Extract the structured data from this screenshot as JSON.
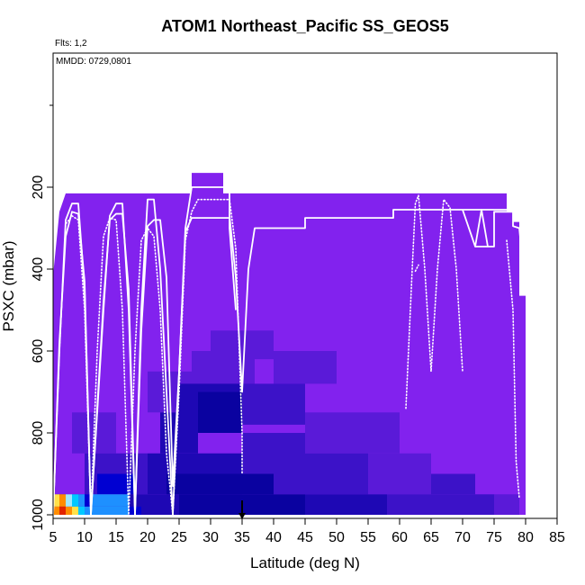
{
  "chart_data": {
    "type": "heatmap",
    "title": "ATOM1 Northeast_Pacific SS_GEOS5",
    "flights_label": "Flts: 1,2",
    "date_label": "MMDD: 0729,0801",
    "xlabel": "Latitude (deg N)",
    "ylabel": "PSXC (mbar)",
    "xlim": [
      5,
      85
    ],
    "ylim": [
      1000,
      0
    ],
    "x_ticks": [
      5,
      10,
      15,
      20,
      25,
      30,
      35,
      40,
      45,
      50,
      55,
      60,
      65,
      70,
      75,
      80,
      85
    ],
    "y_ticks": [
      200,
      400,
      600,
      800,
      1000
    ],
    "marker_latitude": 35,
    "colors": {
      "background_field": "#8222ee",
      "flight_track": "#ffffff",
      "marker": "#000000",
      "scale": [
        "#8222ee",
        "#5a1ad8",
        "#3c12c8",
        "#1e08b4",
        "#0a02a0",
        "#0000d2",
        "#1e90ff",
        "#00c8ff",
        "#9fe8ff",
        "#ffe14a",
        "#ff8c00",
        "#e22400"
      ]
    },
    "field_top_pressure": [
      [
        5,
        415
      ],
      [
        6,
        260
      ],
      [
        7,
        215
      ],
      [
        27,
        215
      ],
      [
        27,
        165
      ],
      [
        32,
        165
      ],
      [
        32,
        215
      ],
      [
        77,
        215
      ],
      [
        77,
        260
      ],
      [
        78,
        260
      ],
      [
        78,
        285
      ],
      [
        79,
        285
      ],
      [
        79,
        465
      ],
      [
        80,
        465
      ],
      [
        80,
        1000
      ]
    ],
    "cells": [
      {
        "x": [
          27,
          37
        ],
        "p": [
          600,
          700
        ],
        "level": 1
      },
      {
        "x": [
          30,
          40
        ],
        "p": [
          550,
          620
        ],
        "level": 1
      },
      {
        "x": [
          40,
          50
        ],
        "p": [
          600,
          680
        ],
        "level": 1
      },
      {
        "x": [
          20,
          27
        ],
        "p": [
          650,
          750
        ],
        "level": 1
      },
      {
        "x": [
          35,
          45
        ],
        "p": [
          680,
          780
        ],
        "level": 2
      },
      {
        "x": [
          25,
          35
        ],
        "p": [
          680,
          760
        ],
        "level": 3
      },
      {
        "x": [
          28,
          35
        ],
        "p": [
          700,
          800
        ],
        "level": 4
      },
      {
        "x": [
          22,
          28
        ],
        "p": [
          750,
          850
        ],
        "level": 3
      },
      {
        "x": [
          8,
          15
        ],
        "p": [
          750,
          850
        ],
        "level": 1
      },
      {
        "x": [
          45,
          60
        ],
        "p": [
          750,
          850
        ],
        "level": 1
      },
      {
        "x": [
          10,
          20
        ],
        "p": [
          850,
          950
        ],
        "level": 2
      },
      {
        "x": [
          20,
          35
        ],
        "p": [
          850,
          950
        ],
        "level": 3
      },
      {
        "x": [
          35,
          45
        ],
        "p": [
          800,
          950
        ],
        "level": 2
      },
      {
        "x": [
          45,
          55
        ],
        "p": [
          850,
          950
        ],
        "level": 2
      },
      {
        "x": [
          55,
          65
        ],
        "p": [
          850,
          950
        ],
        "level": 1
      },
      {
        "x": [
          65,
          72
        ],
        "p": [
          900,
          950
        ],
        "level": 2
      },
      {
        "x": [
          12,
          18
        ],
        "p": [
          900,
          950
        ],
        "level": 5
      },
      {
        "x": [
          23,
          40
        ],
        "p": [
          900,
          950
        ],
        "level": 4
      },
      {
        "x": [
          5,
          10
        ],
        "p": [
          950,
          1000
        ],
        "level": 2
      },
      {
        "x": [
          10,
          16
        ],
        "p": [
          950,
          1000
        ],
        "level": 2
      },
      {
        "x": [
          16,
          25
        ],
        "p": [
          950,
          1000
        ],
        "level": 3
      },
      {
        "x": [
          25,
          45
        ],
        "p": [
          950,
          1000
        ],
        "level": 4
      },
      {
        "x": [
          45,
          58
        ],
        "p": [
          950,
          1000
        ],
        "level": 3
      },
      {
        "x": [
          58,
          75
        ],
        "p": [
          950,
          1000
        ],
        "level": 2
      },
      {
        "x": [
          75,
          79
        ],
        "p": [
          950,
          1000
        ],
        "level": 1
      },
      {
        "x": [
          5,
          6
        ],
        "p": [
          950,
          980
        ],
        "level": 9
      },
      {
        "x": [
          6,
          7
        ],
        "p": [
          950,
          980
        ],
        "level": 10
      },
      {
        "x": [
          7,
          8
        ],
        "p": [
          950,
          980
        ],
        "level": 8
      },
      {
        "x": [
          8,
          9
        ],
        "p": [
          950,
          980
        ],
        "level": 7
      },
      {
        "x": [
          9,
          10
        ],
        "p": [
          950,
          980
        ],
        "level": 6
      },
      {
        "x": [
          10,
          11
        ],
        "p": [
          950,
          980
        ],
        "level": 5
      },
      {
        "x": [
          5,
          6
        ],
        "p": [
          980,
          1000
        ],
        "level": 10
      },
      {
        "x": [
          6,
          7
        ],
        "p": [
          980,
          1000
        ],
        "level": 11
      },
      {
        "x": [
          7,
          8
        ],
        "p": [
          980,
          1000
        ],
        "level": 10
      },
      {
        "x": [
          8,
          9
        ],
        "p": [
          980,
          1000
        ],
        "level": 9
      },
      {
        "x": [
          9,
          10
        ],
        "p": [
          980,
          1000
        ],
        "level": 7
      },
      {
        "x": [
          10,
          12
        ],
        "p": [
          980,
          1000
        ],
        "level": 6
      },
      {
        "x": [
          12,
          17
        ],
        "p": [
          980,
          1000
        ],
        "level": 6
      },
      {
        "x": [
          17,
          19
        ],
        "p": [
          980,
          1000
        ],
        "level": 5
      },
      {
        "x": [
          11,
          17
        ],
        "p": [
          950,
          980
        ],
        "level": 6
      }
    ],
    "series": [
      {
        "style": "solid",
        "points": [
          [
            5,
            1000
          ],
          [
            6,
            600
          ],
          [
            7,
            280
          ],
          [
            8,
            240
          ],
          [
            9,
            240
          ],
          [
            10,
            450
          ],
          [
            11,
            1000
          ],
          [
            13,
            500
          ],
          [
            14,
            270
          ],
          [
            15,
            240
          ],
          [
            16,
            240
          ],
          [
            17,
            500
          ],
          [
            18,
            1000
          ],
          [
            19,
            500
          ],
          [
            20,
            230
          ],
          [
            21,
            230
          ],
          [
            22,
            400
          ],
          [
            23,
            700
          ],
          [
            24,
            1000
          ],
          [
            25,
            650
          ],
          [
            26,
            300
          ],
          [
            27,
            200
          ],
          [
            30,
            200
          ],
          [
            33,
            200
          ],
          [
            33,
            270
          ],
          [
            34,
            420
          ],
          [
            35,
            700
          ],
          [
            36,
            400
          ],
          [
            37,
            300
          ],
          [
            45,
            300
          ],
          [
            45,
            275
          ],
          [
            59,
            275
          ],
          [
            59,
            255
          ],
          [
            77,
            255
          ]
        ]
      },
      {
        "style": "solid",
        "points": [
          [
            5,
            1000
          ],
          [
            6,
            580
          ],
          [
            7,
            320
          ],
          [
            8,
            260
          ],
          [
            9,
            265
          ],
          [
            10,
            430
          ],
          [
            11,
            1000
          ],
          [
            13,
            480
          ],
          [
            14,
            280
          ],
          [
            15,
            265
          ],
          [
            16,
            265
          ],
          [
            17,
            450
          ],
          [
            18,
            1000
          ],
          [
            19,
            550
          ],
          [
            20,
            295
          ],
          [
            21,
            280
          ],
          [
            22,
            280
          ],
          [
            23,
            420
          ],
          [
            24,
            930
          ],
          [
            25,
            650
          ],
          [
            26,
            310
          ],
          [
            27,
            275
          ],
          [
            31,
            275
          ],
          [
            33,
            275
          ],
          [
            33,
            300
          ],
          [
            34,
            500
          ]
        ]
      },
      {
        "style": "solid",
        "points": [
          [
            72,
            345
          ],
          [
            75,
            345
          ],
          [
            75,
            260
          ],
          [
            78,
            260
          ],
          [
            78,
            295
          ],
          [
            79,
            300
          ],
          [
            80,
            460
          ]
        ]
      },
      {
        "style": "solid",
        "points": [
          [
            70,
            255
          ],
          [
            72,
            345
          ],
          [
            73,
            255
          ],
          [
            74,
            345
          ]
        ]
      },
      {
        "style": "dotted",
        "points": [
          [
            5,
            1000
          ],
          [
            6,
            600
          ],
          [
            7,
            290
          ],
          [
            8,
            270
          ],
          [
            9,
            280
          ],
          [
            10,
            500
          ],
          [
            11,
            1000
          ],
          [
            12,
            600
          ],
          [
            13,
            320
          ],
          [
            14,
            275
          ],
          [
            15,
            280
          ],
          [
            16,
            500
          ],
          [
            17,
            1000
          ],
          [
            18,
            600
          ],
          [
            19,
            330
          ],
          [
            20,
            300
          ],
          [
            21,
            320
          ],
          [
            22,
            500
          ],
          [
            23,
            850
          ],
          [
            24,
            1000
          ],
          [
            25,
            700
          ],
          [
            26,
            330
          ],
          [
            27,
            260
          ],
          [
            28,
            230
          ],
          [
            33,
            230
          ],
          [
            34,
            350
          ],
          [
            35,
            800
          ],
          [
            35,
            900
          ]
        ]
      },
      {
        "style": "dotted",
        "points": [
          [
            61,
            740
          ],
          [
            62,
            400
          ],
          [
            62.5,
            240
          ],
          [
            63,
            220
          ],
          [
            64,
            400
          ],
          [
            65,
            650
          ],
          [
            66,
            400
          ],
          [
            67,
            230
          ],
          [
            68,
            250
          ],
          [
            69,
            400
          ],
          [
            70,
            650
          ]
        ]
      },
      {
        "style": "dotted",
        "points": [
          [
            77,
            330
          ],
          [
            78,
            500
          ],
          [
            78.5,
            870
          ],
          [
            79,
            960
          ]
        ]
      },
      {
        "style": "dotted",
        "points": [
          [
            62.5,
            405
          ],
          [
            63,
            390
          ]
        ]
      }
    ]
  }
}
